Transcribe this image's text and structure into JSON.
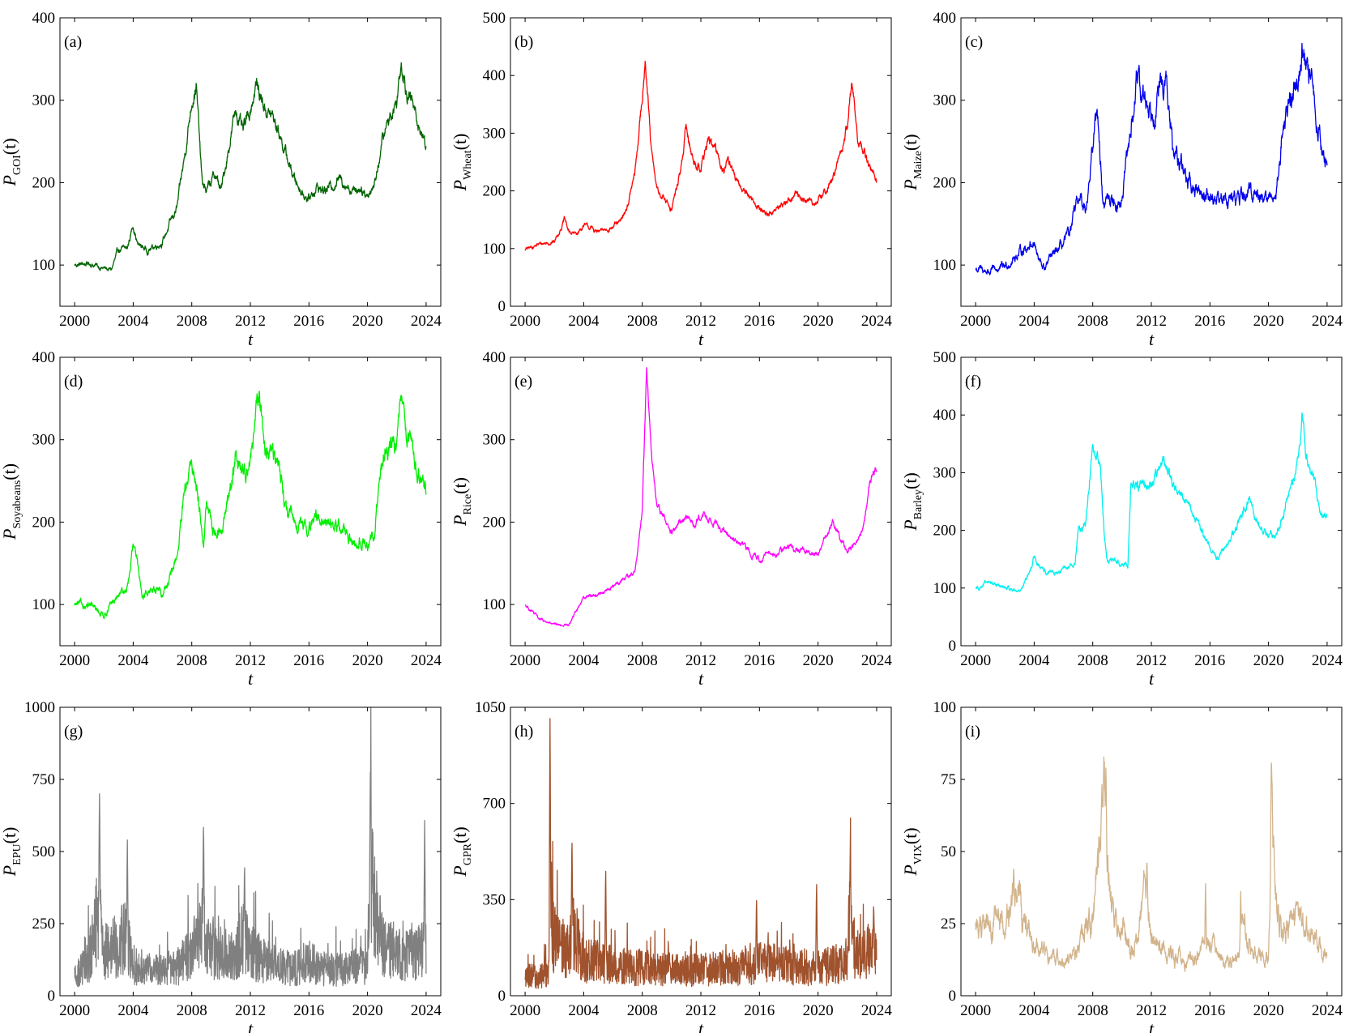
{
  "figure": {
    "xlabel": "t"
  },
  "chart_data": [
    {
      "type": "line",
      "panel": "(a)",
      "ylabel_var": "P",
      "ylabel_sub": "GOI",
      "ylabel_arg": "(t)",
      "color": "#006400",
      "xlim": [
        1999,
        2025
      ],
      "ylim": [
        50,
        400
      ],
      "xticks": [
        2000,
        2004,
        2008,
        2012,
        2016,
        2020,
        2024
      ],
      "yticks": [
        100,
        200,
        300,
        400
      ],
      "noise": 0.018,
      "x": [
        2000,
        2001,
        2002,
        2002.5,
        2003,
        2003.6,
        2004,
        2004.3,
        2005,
        2006,
        2006.5,
        2007,
        2007.5,
        2008,
        2008.3,
        2008.7,
        2009,
        2009.6,
        2010,
        2010.5,
        2011,
        2011.5,
        2012,
        2012.4,
        2013,
        2013.5,
        2014,
        2014.5,
        2015,
        2015.5,
        2016,
        2016.5,
        2017,
        2017.5,
        2018,
        2018.5,
        2019,
        2019.5,
        2020,
        2020.5,
        2021,
        2021.5,
        2022,
        2022.3,
        2022.7,
        2023,
        2023.5,
        2024
      ],
      "y": [
        100,
        102,
        96,
        94,
        118,
        120,
        150,
        125,
        118,
        128,
        150,
        170,
        230,
        300,
        320,
        200,
        190,
        210,
        190,
        240,
        290,
        260,
        290,
        320,
        290,
        280,
        260,
        230,
        205,
        190,
        180,
        195,
        190,
        195,
        205,
        200,
        190,
        195,
        185,
        200,
        250,
        280,
        300,
        350,
        310,
        300,
        270,
        245
      ]
    },
    {
      "type": "line",
      "panel": "(b)",
      "ylabel_var": "P",
      "ylabel_sub": "Wheat",
      "ylabel_arg": "(t)",
      "color": "#ff0000",
      "xlim": [
        1999,
        2025
      ],
      "ylim": [
        0,
        500
      ],
      "xticks": [
        2000,
        2004,
        2008,
        2012,
        2016,
        2020,
        2024
      ],
      "yticks": [
        0,
        100,
        200,
        300,
        400,
        500
      ],
      "noise": 0.018,
      "x": [
        2000,
        2001,
        2002,
        2002.7,
        2003,
        2003.5,
        2004,
        2004.5,
        2005,
        2006,
        2006.5,
        2007,
        2007.5,
        2008,
        2008.2,
        2008.6,
        2009,
        2009.5,
        2010,
        2010.6,
        2011,
        2011.5,
        2012,
        2012.5,
        2013,
        2013.5,
        2014,
        2014.5,
        2015,
        2016,
        2016.5,
        2017,
        2018,
        2018.5,
        2019,
        2020,
        2021,
        2021.5,
        2022,
        2022.3,
        2022.7,
        2023,
        2023.5,
        2024
      ],
      "y": [
        98,
        108,
        112,
        150,
        128,
        125,
        140,
        135,
        128,
        138,
        145,
        175,
        230,
        360,
        440,
        270,
        200,
        185,
        170,
        230,
        310,
        250,
        240,
        290,
        270,
        240,
        250,
        210,
        200,
        170,
        160,
        165,
        185,
        195,
        185,
        180,
        220,
        260,
        310,
        390,
        290,
        280,
        240,
        220
      ]
    },
    {
      "type": "line",
      "panel": "(c)",
      "ylabel_var": "P",
      "ylabel_sub": "Maize",
      "ylabel_arg": "(t)",
      "color": "#0000ee",
      "xlim": [
        1999,
        2025
      ],
      "ylim": [
        50,
        400
      ],
      "xticks": [
        2000,
        2004,
        2008,
        2012,
        2016,
        2020,
        2024
      ],
      "yticks": [
        100,
        200,
        300,
        400
      ],
      "noise": 0.03,
      "x": [
        2000,
        2001,
        2002,
        2003,
        2004,
        2004.3,
        2004.7,
        2005,
        2006,
        2006.5,
        2007,
        2007.5,
        2008,
        2008.3,
        2008.7,
        2009,
        2010,
        2010.5,
        2011,
        2011.5,
        2012,
        2012.5,
        2013,
        2013.5,
        2014,
        2014.5,
        2015,
        2016,
        2017,
        2018,
        2018.5,
        2019,
        2020,
        2020.5,
        2021,
        2021.5,
        2022,
        2022.3,
        2022.7,
        2023,
        2023.5,
        2024
      ],
      "y": [
        95,
        92,
        98,
        115,
        130,
        105,
        95,
        105,
        125,
        140,
        180,
        170,
        240,
        300,
        170,
        180,
        175,
        250,
        320,
        300,
        290,
        310,
        320,
        230,
        230,
        200,
        190,
        185,
        180,
        180,
        185,
        190,
        180,
        185,
        270,
        300,
        330,
        370,
        320,
        310,
        260,
        215
      ]
    },
    {
      "type": "line",
      "panel": "(d)",
      "ylabel_var": "P",
      "ylabel_sub": "Soyabeans",
      "ylabel_arg": "(t)",
      "color": "#00ee00",
      "xlim": [
        1999,
        2025
      ],
      "ylim": [
        50,
        400
      ],
      "xticks": [
        2000,
        2004,
        2008,
        2012,
        2016,
        2020,
        2024
      ],
      "yticks": [
        100,
        200,
        300,
        400
      ],
      "noise": 0.025,
      "x": [
        2000,
        2001,
        2002,
        2003,
        2003.6,
        2004,
        2004.3,
        2004.7,
        2005,
        2006,
        2006.5,
        2007,
        2007.5,
        2008,
        2008.4,
        2008.8,
        2009,
        2009.5,
        2010,
        2010.5,
        2011,
        2011.5,
        2012,
        2012.6,
        2013,
        2013.5,
        2014,
        2014.5,
        2015,
        2016,
        2016.5,
        2017,
        2018,
        2018.5,
        2019,
        2020,
        2020.5,
        2021,
        2021.5,
        2022,
        2022.3,
        2022.7,
        2023,
        2023.5,
        2024
      ],
      "y": [
        100,
        98,
        88,
        110,
        120,
        170,
        145,
        110,
        118,
        115,
        130,
        160,
        230,
        270,
        240,
        175,
        220,
        190,
        185,
        230,
        280,
        260,
        280,
        350,
        290,
        280,
        270,
        210,
        200,
        190,
        210,
        200,
        195,
        190,
        175,
        175,
        195,
        270,
        300,
        290,
        340,
        310,
        290,
        260,
        230
      ]
    },
    {
      "type": "line",
      "panel": "(e)",
      "ylabel_var": "P",
      "ylabel_sub": "Rice",
      "ylabel_arg": "(t)",
      "color": "#ff00ff",
      "xlim": [
        1999,
        2025
      ],
      "ylim": [
        50,
        400
      ],
      "xticks": [
        2000,
        2004,
        2008,
        2012,
        2016,
        2020,
        2024
      ],
      "yticks": [
        100,
        200,
        300,
        400
      ],
      "noise": 0.012,
      "x": [
        2000,
        2001,
        2002,
        2003,
        2004,
        2005,
        2006,
        2007,
        2007.5,
        2008,
        2008.3,
        2008.6,
        2009,
        2009.5,
        2010,
        2011,
        2011.5,
        2012,
        2013,
        2014,
        2015,
        2016,
        2016.5,
        2017,
        2018,
        2019,
        2020,
        2020.7,
        2021,
        2021.5,
        2022,
        2022.5,
        2023,
        2023.5,
        2024
      ],
      "y": [
        100,
        82,
        75,
        75,
        110,
        112,
        122,
        135,
        140,
        215,
        390,
        280,
        220,
        205,
        185,
        210,
        195,
        210,
        200,
        180,
        170,
        155,
        160,
        160,
        170,
        165,
        160,
        190,
        200,
        180,
        165,
        175,
        185,
        245,
        265
      ]
    },
    {
      "type": "line",
      "panel": "(f)",
      "ylabel_var": "P",
      "ylabel_sub": "Barley",
      "ylabel_arg": "(t)",
      "color": "#00f0f0",
      "xlim": [
        1999,
        2025
      ],
      "ylim": [
        0,
        500
      ],
      "xticks": [
        2000,
        2004,
        2008,
        2012,
        2016,
        2020,
        2024
      ],
      "yticks": [
        0,
        100,
        200,
        300,
        400,
        500
      ],
      "noise": 0.02,
      "x": [
        2000,
        2001,
        2002,
        2003,
        2003.7,
        2004,
        2004.5,
        2005,
        2006,
        2006.8,
        2007,
        2007.5,
        2008,
        2008.5,
        2008.8,
        2009,
        2009.5,
        2010,
        2010.4,
        2010.6,
        2011,
        2011.5,
        2012,
        2012.8,
        2013,
        2013.5,
        2014,
        2014.5,
        2015,
        2016,
        2016.5,
        2017,
        2018,
        2018.7,
        2019,
        2020,
        2020.5,
        2021,
        2021.5,
        2022,
        2022.3,
        2022.7,
        2023,
        2023.5,
        2024
      ],
      "y": [
        100,
        110,
        100,
        95,
        125,
        155,
        130,
        125,
        130,
        145,
        200,
        210,
        350,
        320,
        190,
        140,
        150,
        140,
        140,
        290,
        275,
        290,
        280,
        320,
        305,
        280,
        260,
        245,
        220,
        170,
        155,
        170,
        215,
        255,
        220,
        200,
        190,
        230,
        270,
        310,
        400,
        310,
        300,
        240,
        220
      ]
    },
    {
      "type": "line",
      "panel": "(g)",
      "ylabel_var": "P",
      "ylabel_sub": "EPU",
      "ylabel_arg": "(t)",
      "color": "#808080",
      "xlim": [
        1999,
        2025
      ],
      "ylim": [
        0,
        1000
      ],
      "xticks": [
        2000,
        2004,
        2008,
        2012,
        2016,
        2020,
        2024
      ],
      "yticks": [
        0,
        250,
        500,
        750,
        1000
      ],
      "noise": 0.55,
      "x": [
        2000,
        2001,
        2001.7,
        2002,
        2003,
        2003.5,
        2004,
        2005,
        2006,
        2007,
        2008,
        2008.8,
        2009,
        2010,
        2011,
        2011.5,
        2012,
        2013,
        2014,
        2015,
        2016,
        2017,
        2018,
        2019,
        2020,
        2020.2,
        2020.5,
        2021,
        2022,
        2023,
        2024
      ],
      "y": [
        60,
        130,
        300,
        150,
        180,
        200,
        110,
        90,
        90,
        100,
        150,
        240,
        170,
        130,
        160,
        200,
        150,
        120,
        100,
        95,
        120,
        95,
        90,
        100,
        110,
        500,
        300,
        180,
        150,
        140,
        160
      ],
      "spikes": [
        [
          2001.7,
          720
        ],
        [
          2003.6,
          540
        ],
        [
          2008.8,
          620
        ],
        [
          2011.6,
          470
        ],
        [
          2020.2,
          805
        ],
        [
          2023.9,
          630
        ]
      ]
    },
    {
      "type": "line",
      "panel": "(h)",
      "ylabel_var": "P",
      "ylabel_sub": "GPR",
      "ylabel_arg": "(t)",
      "color": "#a0522d",
      "xlim": [
        1999,
        2025
      ],
      "ylim": [
        0,
        1050
      ],
      "xticks": [
        2000,
        2004,
        2008,
        2012,
        2016,
        2020,
        2024
      ],
      "yticks": [
        0,
        350,
        700,
        1050
      ],
      "noise": 0.4,
      "x": [
        2000,
        2001,
        2001.6,
        2001.8,
        2002,
        2003,
        2003.3,
        2004,
        2005,
        2006,
        2008,
        2010,
        2012,
        2014,
        2016,
        2018,
        2020,
        2021,
        2022,
        2022.2,
        2022.5,
        2023,
        2024
      ],
      "y": [
        70,
        70,
        80,
        300,
        200,
        170,
        250,
        130,
        120,
        110,
        100,
        95,
        95,
        100,
        120,
        110,
        100,
        110,
        130,
        320,
        160,
        150,
        170
      ],
      "spikes": [
        [
          2001.7,
          1050
        ],
        [
          2003.2,
          590
        ],
        [
          2005.5,
          470
        ],
        [
          2015.8,
          370
        ],
        [
          2019.9,
          420
        ],
        [
          2022.2,
          540
        ],
        [
          2023.8,
          340
        ]
      ]
    },
    {
      "type": "line",
      "panel": "(i)",
      "ylabel_var": "P",
      "ylabel_sub": "VIX",
      "ylabel_arg": "(t)",
      "color": "#d2b48c",
      "xlim": [
        1999,
        2025
      ],
      "ylim": [
        0,
        100
      ],
      "xticks": [
        2000,
        2004,
        2008,
        2012,
        2016,
        2020,
        2024
      ],
      "yticks": [
        0,
        25,
        50,
        75,
        100
      ],
      "noise": 0.12,
      "x": [
        2000,
        2001,
        2002,
        2002.5,
        2003,
        2003.5,
        2004,
        2005,
        2006,
        2007,
        2007.5,
        2008,
        2008.8,
        2009,
        2009.5,
        2010,
        2011,
        2011.6,
        2012,
        2013,
        2014,
        2015,
        2016,
        2017,
        2018,
        2018.2,
        2019,
        2020,
        2020.2,
        2020.5,
        2021,
        2022,
        2023,
        2024
      ],
      "y": [
        24,
        26,
        22,
        33,
        35,
        22,
        17,
        13,
        12,
        15,
        25,
        25,
        70,
        45,
        30,
        22,
        18,
        38,
        20,
        15,
        13,
        15,
        17,
        11,
        13,
        25,
        15,
        14,
        70,
        35,
        22,
        28,
        19,
        13
      ],
      "spikes": [
        [
          2008.9,
          80
        ],
        [
          2020.2,
          82
        ],
        [
          2011.7,
          48
        ],
        [
          2002.6,
          45
        ],
        [
          2015.7,
          40
        ],
        [
          2018.1,
          37
        ]
      ]
    }
  ]
}
